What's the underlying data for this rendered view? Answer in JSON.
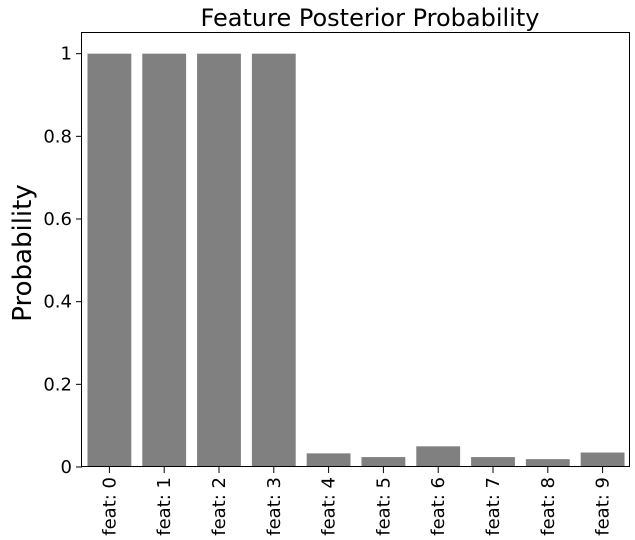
{
  "chart_data": {
    "type": "bar",
    "title": "Feature Posterior Probability",
    "xlabel": "",
    "ylabel": "Probability",
    "categories": [
      "feat: 0",
      "feat: 1",
      "feat: 2",
      "feat: 3",
      "feat: 4",
      "feat: 5",
      "feat: 6",
      "feat: 7",
      "feat: 8",
      "feat: 9"
    ],
    "values": [
      1.0,
      1.0,
      1.0,
      1.0,
      0.033,
      0.024,
      0.05,
      0.024,
      0.019,
      0.035
    ],
    "ylim": [
      0,
      1.05
    ],
    "yticks": [
      0,
      0.2,
      0.4,
      0.6,
      0.8,
      1
    ],
    "ytick_labels": [
      "0",
      "0.2",
      "0.4",
      "0.6",
      "0.8",
      "1"
    ],
    "bar_color": "#808080",
    "grid": false,
    "legend": "none"
  }
}
